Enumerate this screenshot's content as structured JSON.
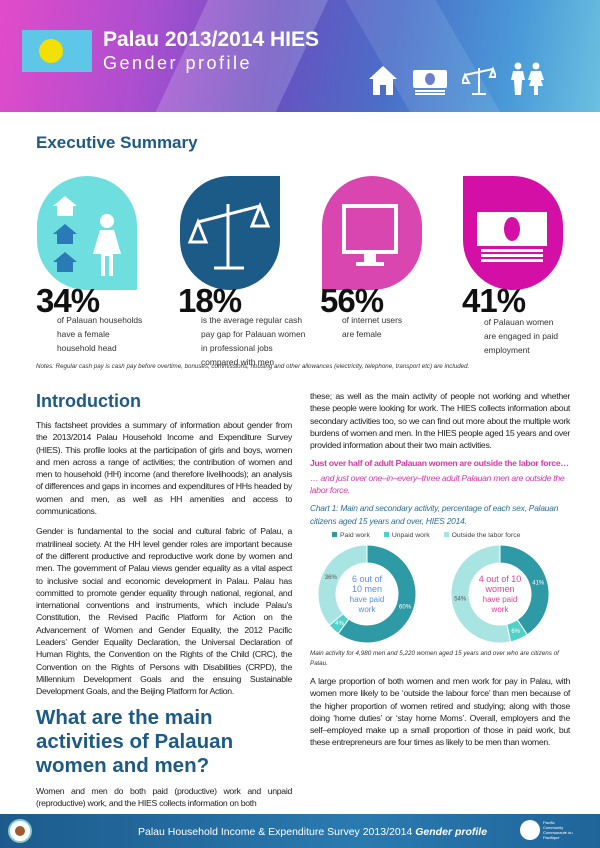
{
  "header": {
    "title": "Palau 2013/2014 HIES",
    "subtitle": "Gender profile",
    "flag_colors": {
      "field": "#5ec7e8",
      "sun": "#f4e000"
    },
    "icons": [
      "house-icon",
      "money-icon",
      "scales-icon",
      "man-woman-icon"
    ]
  },
  "exec": {
    "title": "Executive Summary",
    "stats": [
      {
        "value": "34%",
        "text": "of Palauan households have a female household head",
        "icon": "household-woman-icon",
        "color": "#6fdede"
      },
      {
        "value": "18%",
        "text": "is the average regular cash pay gap for Palauan women in professional jobs compared with men",
        "icon": "scales-icon",
        "color": "#1c5a87"
      },
      {
        "value": "56%",
        "text": "of internet users are female",
        "icon": "monitor-icon",
        "color": "#d946b0"
      },
      {
        "value": "41%",
        "text": "of Palauan women are engaged in paid employment",
        "icon": "money-icon",
        "color": "#d40fa6"
      }
    ],
    "notes": "Notes: Regular cash pay is cash pay before overtime, bonuses, commissions, housing and other allowances (electricity, telephone, transport etc) are included."
  },
  "intro": {
    "title": "Introduction",
    "p1": "This factsheet provides a summary of information about gender from the 2013/2014 Palau Household Income and Expenditure Survey (HIES). This profile looks at the participation of girls and boys, women and men across a range of activities; the contribution of women and men to household (HH) income (and therefore livelihoods); an analysis of differences and gaps in incomes and expenditures of HHs headed by women and men, as well as HH amenities and access to communications.",
    "p2": "Gender is fundamental to the social and cultural fabric of Palau, a matrilineal society. At the HH level gender roles are important because of the different productive and reproductive work done by women and men. The government of Palau views gender equality as a vital aspect to inclusive social and economic development in Palau. Palau has committed to promote gender equality through national, regional, and international conventions and instruments, which include Palau’s Constitution, the Revised Pacific Platform for Action on the Advancement of Women and Gender Equality, the 2012 Pacific Leaders’ Gender Equality Declaration, the Universal Declaration of Human Rights, the Convention on the Rights of the Child (CRC), the Convention on the Rights of Persons with Disabilities (CRPD), the Millennium Development Goals and the ensuing Sustainable Development Goals, and the Beijing Platform for Action.",
    "p3": "these; as well as the main activity of people not working and whether these people were looking for work. The HIES collects information about secondary activities too, so we can find out more about the multiple work burdens of women and men. In the HIES people aged 15 years and over provided information about their two main activities.",
    "highlight": "Just over half of adult Palauan women are outside the labor force…",
    "highlight_sub": "… and just over one–in–every–three adult Palauan men are outside the labor force."
  },
  "chart_data": {
    "type": "pie",
    "title": "Chart 1: Main and secondary activity, percentage of each sex, Palauan citizens aged 15 years and over, HIES 2014.",
    "legend": [
      "Paid work",
      "Unpaid work",
      "Outside the labor force"
    ],
    "colors": [
      "#2e9aa6",
      "#4fd0c8",
      "#a8e4e2"
    ],
    "charts": [
      {
        "name": "men",
        "values": [
          60,
          4,
          36
        ],
        "labels": [
          "60%",
          "4%",
          "36%"
        ],
        "center_text": "6 out of 10 men have paid work",
        "center_color": "#5a8fe0"
      },
      {
        "name": "women",
        "values": [
          41,
          6,
          54
        ],
        "labels": [
          "41%",
          "6%",
          "54%"
        ],
        "center_text": "4 out of 10 women have paid work",
        "center_color": "#e8409c"
      }
    ],
    "note": "Main activity for 4,980 men and 5,220 women aged 15 years and over who are citizens of Palau."
  },
  "activities": {
    "title": "What are the main activities of Palauan women and men?",
    "p1": "Women and men do both paid (productive) work and unpaid (reproductive) work, and the HIES collects information on both",
    "p2": "A large proportion of both women and men work for pay in Palau, with women more likely to be ‘outside the labour force’ than men because of the higher proportion of women retired and studying; along with those doing ‘home duties’ or ‘stay home Moms’. Overall, employers and the self–employed make up a small proportion of those in paid work, but these entrepreneurs are four times as likely to be men than women."
  },
  "footer": {
    "text": "Palau Household Income & Expenditure Survey 2013/2014 ",
    "text_em": "Gender profile",
    "logo_text": "Pacific Community Communauté du Pacifique"
  }
}
